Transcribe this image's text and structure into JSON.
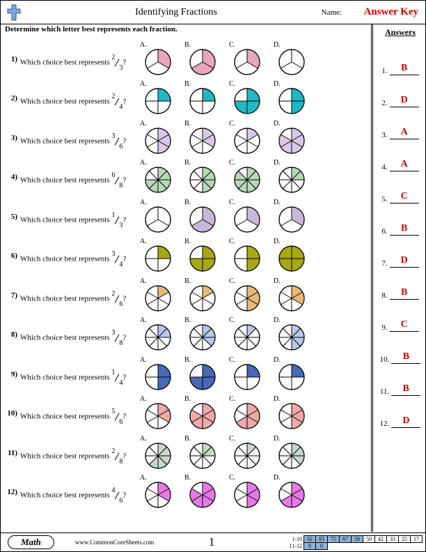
{
  "header": {
    "title": "Identifying Fractions",
    "name_label": "Name:",
    "answer_key": "Answer Key"
  },
  "instructions": "Determine which letter best represents each fraction.",
  "answers_header": "Answers",
  "choice_labels": [
    "A.",
    "B.",
    "C.",
    "D."
  ],
  "questions": [
    {
      "n": 1,
      "num": "2",
      "den": "3",
      "color": "#e8a8b8",
      "pies": [
        {
          "t": 3,
          "f": 1
        },
        {
          "t": 3,
          "f": 2
        },
        {
          "t": 3,
          "f": 1
        },
        {
          "t": 3,
          "f": 0
        }
      ]
    },
    {
      "n": 2,
      "num": "2",
      "den": "4",
      "color": "#1fb8c4",
      "pies": [
        {
          "t": 4,
          "f": 1
        },
        {
          "t": 4,
          "f": 1
        },
        {
          "t": 4,
          "f": 3
        },
        {
          "t": 4,
          "f": 2
        }
      ]
    },
    {
      "n": 3,
      "num": "3",
      "den": "6",
      "color": "#d8c8e8",
      "pies": [
        {
          "t": 6,
          "f": 3
        },
        {
          "t": 6,
          "f": 2
        },
        {
          "t": 6,
          "f": 1
        },
        {
          "t": 6,
          "f": 5
        }
      ]
    },
    {
      "n": 4,
      "num": "6",
      "den": "8",
      "color": "#b8d8b8",
      "pies": [
        {
          "t": 8,
          "f": 6
        },
        {
          "t": 8,
          "f": 4
        },
        {
          "t": 8,
          "f": 7
        },
        {
          "t": 8,
          "f": 2
        }
      ]
    },
    {
      "n": 5,
      "num": "1",
      "den": "3",
      "color": "#c8b8d8",
      "pies": [
        {
          "t": 3,
          "f": 0
        },
        {
          "t": 3,
          "f": 2
        },
        {
          "t": 3,
          "f": 1
        },
        {
          "t": 3,
          "f": 1
        }
      ]
    },
    {
      "n": 6,
      "num": "3",
      "den": "4",
      "color": "#a8a810",
      "pies": [
        {
          "t": 4,
          "f": 1
        },
        {
          "t": 4,
          "f": 3
        },
        {
          "t": 4,
          "f": 2
        },
        {
          "t": 4,
          "f": 4
        }
      ]
    },
    {
      "n": 7,
      "num": "2",
      "den": "6",
      "color": "#e8b878",
      "pies": [
        {
          "t": 6,
          "f": 1
        },
        {
          "t": 6,
          "f": 1
        },
        {
          "t": 6,
          "f": 3
        },
        {
          "t": 6,
          "f": 2
        }
      ]
    },
    {
      "n": 8,
      "num": "3",
      "den": "8",
      "color": "#b8c8e8",
      "pies": [
        {
          "t": 8,
          "f": 2
        },
        {
          "t": 8,
          "f": 3
        },
        {
          "t": 8,
          "f": 1
        },
        {
          "t": 8,
          "f": 4
        }
      ]
    },
    {
      "n": 9,
      "num": "1",
      "den": "4",
      "color": "#4868b8",
      "pies": [
        {
          "t": 4,
          "f": 2
        },
        {
          "t": 4,
          "f": 3
        },
        {
          "t": 4,
          "f": 1
        },
        {
          "t": 4,
          "f": 1
        }
      ]
    },
    {
      "n": 10,
      "num": "5",
      "den": "6",
      "color": "#f0a8a8",
      "pies": [
        {
          "t": 6,
          "f": 2
        },
        {
          "t": 6,
          "f": 5
        },
        {
          "t": 6,
          "f": 4
        },
        {
          "t": 6,
          "f": 3
        }
      ]
    },
    {
      "n": 11,
      "num": "2",
      "den": "8",
      "color": "#c8d8c8",
      "pies": [
        {
          "t": 8,
          "f": 5
        },
        {
          "t": 8,
          "f": 2
        },
        {
          "t": 8,
          "f": 1
        },
        {
          "t": 8,
          "f": 3
        }
      ]
    },
    {
      "n": 12,
      "num": "4",
      "den": "6",
      "color": "#e878e8",
      "pies": [
        {
          "t": 6,
          "f": 2
        },
        {
          "t": 6,
          "f": 5
        },
        {
          "t": 6,
          "f": 3
        },
        {
          "t": 6,
          "f": 4
        }
      ]
    }
  ],
  "question_text_prefix": "Which choice best represents ",
  "question_text_suffix": "?",
  "answers": [
    "B",
    "D",
    "A",
    "A",
    "C",
    "B",
    "D",
    "B",
    "C",
    "B",
    "B",
    "D"
  ],
  "footer": {
    "subject": "Math",
    "url": "www.CommonCoreSheets.com",
    "page": "1",
    "score_rows": [
      {
        "label": "1-10",
        "cells": [
          "92",
          "83",
          "75",
          "67",
          "58",
          "50",
          "42",
          "33",
          "25",
          "17"
        ],
        "hi": 5
      },
      {
        "label": "11-12",
        "cells": [
          "8",
          "0"
        ],
        "hi": 2
      }
    ]
  },
  "colors": {
    "answer_red": "#d00000",
    "pie_stroke": "#000000",
    "cross_blue": "#7aa8d8",
    "cross_border": "#2858a8"
  }
}
